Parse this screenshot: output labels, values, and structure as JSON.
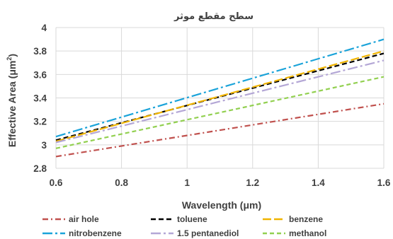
{
  "chart_data": {
    "type": "line",
    "title": "سطح مقطع موثر",
    "xlabel": "Wavelength (μm)",
    "ylabel": "Effective Area (μm",
    "ylabel_sup": "2",
    "ylabel_close": ")",
    "xlim": [
      0.6,
      1.6
    ],
    "ylim": [
      2.8,
      4.0
    ],
    "x_ticks": [
      0.6,
      0.8,
      1.0,
      1.2,
      1.4,
      1.6
    ],
    "x_tick_labels": [
      "0.6",
      "0.8",
      "1",
      "1.2",
      "1.4",
      "1.6"
    ],
    "y_ticks": [
      2.8,
      3.0,
      3.2,
      3.4,
      3.6,
      3.8,
      4.0
    ],
    "y_tick_labels": [
      "2.8",
      "3",
      "3.2",
      "3.4",
      "3.6",
      "3.8",
      "4"
    ],
    "grid": true,
    "legend_position": "bottom",
    "x": [
      0.6,
      1.6
    ],
    "series": [
      {
        "name": "air hole",
        "color": "#c0504d",
        "dash": "8 4 2 4",
        "values": [
          2.9,
          3.35
        ]
      },
      {
        "name": "toluene",
        "color": "#000000",
        "dash": "7 4",
        "values": [
          3.04,
          3.78
        ]
      },
      {
        "name": "benzene",
        "color": "#f0b400",
        "dash": "12 4",
        "values": [
          3.03,
          3.8
        ]
      },
      {
        "name": "nitrobenzene",
        "color": "#1aa3d9",
        "dash": "14 4 3 4",
        "values": [
          3.07,
          3.9
        ]
      },
      {
        "name": "1.5 pentanediol",
        "color": "#b4a7d6",
        "dash": "14 4 3 4",
        "values": [
          3.02,
          3.72
        ]
      },
      {
        "name": "methanol",
        "color": "#92d050",
        "dash": "6 4",
        "values": [
          2.97,
          3.58
        ]
      }
    ]
  }
}
